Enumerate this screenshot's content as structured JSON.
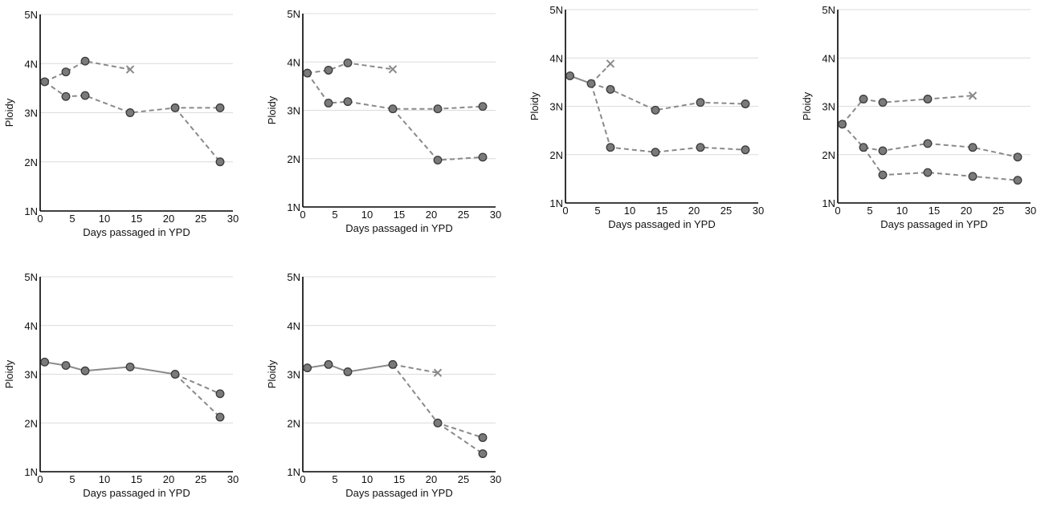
{
  "colors": {
    "marker_fill": "#7a7a7a",
    "marker_stroke": "#3a3a3a",
    "line": "#8a8a8a",
    "cross": "#8a8a8a",
    "grid": "#dcdcdc",
    "axis": "#000000"
  },
  "chart_data": [
    {
      "type": "line",
      "xlabel": "Days passaged in YPD",
      "ylabel": "Ploidy",
      "xlim": [
        0,
        30
      ],
      "ylim": [
        1,
        5
      ],
      "xticks": [
        "0",
        "5",
        "10",
        "15",
        "20",
        "25",
        "30"
      ],
      "yticks": [
        "1N",
        "2N",
        "3N",
        "4N",
        "5N"
      ],
      "grid": "horizontal",
      "series": [
        {
          "style": "dashed",
          "points": [
            [
              0.7,
              3.63
            ],
            [
              4,
              3.33
            ],
            [
              7,
              3.35
            ],
            [
              14,
              3.0
            ],
            [
              21,
              3.1
            ],
            [
              28,
              3.1
            ]
          ],
          "end": "circle"
        },
        {
          "style": "dashed",
          "points": [
            [
              0.7,
              3.63
            ],
            [
              4,
              3.83
            ],
            [
              7,
              4.05
            ],
            [
              14,
              3.88
            ]
          ],
          "end": "cross"
        },
        {
          "style": "dashed",
          "points": [
            [
              21,
              3.1
            ],
            [
              28,
              2.0
            ]
          ],
          "end": "circle"
        }
      ]
    },
    {
      "type": "line",
      "xlabel": "Days passaged in YPD",
      "ylabel": "Ploidy",
      "xlim": [
        0,
        30
      ],
      "ylim": [
        1,
        5
      ],
      "xticks": [
        "0",
        "5",
        "10",
        "15",
        "20",
        "25",
        "30"
      ],
      "yticks": [
        "1N",
        "2N",
        "3N",
        "4N",
        "5N"
      ],
      "grid": "horizontal",
      "series": [
        {
          "style": "dashed",
          "points": [
            [
              0.7,
              3.77
            ],
            [
              4,
              3.15
            ],
            [
              7,
              3.18
            ],
            [
              14,
              3.03
            ],
            [
              21,
              3.03
            ],
            [
              28,
              3.08
            ]
          ],
          "end": "circle"
        },
        {
          "style": "dashed",
          "points": [
            [
              0.7,
              3.77
            ],
            [
              4,
              3.83
            ],
            [
              7,
              3.98
            ],
            [
              14,
              3.85
            ]
          ],
          "end": "cross"
        },
        {
          "style": "dashed",
          "points": [
            [
              14,
              3.03
            ],
            [
              21,
              1.97
            ],
            [
              28,
              2.03
            ]
          ],
          "end": "circle"
        }
      ]
    },
    {
      "type": "line",
      "xlabel": "Days passaged in YPD",
      "ylabel": "Ploidy",
      "xlim": [
        0,
        30
      ],
      "ylim": [
        1,
        5
      ],
      "xticks": [
        "0",
        "5",
        "10",
        "15",
        "20",
        "25",
        "30"
      ],
      "yticks": [
        "1N",
        "2N",
        "3N",
        "4N",
        "5N"
      ],
      "grid": "horizontal",
      "series": [
        {
          "style": "solid",
          "points": [
            [
              0.7,
              3.63
            ],
            [
              4,
              3.47
            ]
          ],
          "end": "circle"
        },
        {
          "style": "dashed",
          "points": [
            [
              4,
              3.47
            ],
            [
              7,
              3.35
            ],
            [
              14,
              2.92
            ],
            [
              21,
              3.08
            ],
            [
              28,
              3.05
            ]
          ],
          "end": "circle"
        },
        {
          "style": "dashed",
          "points": [
            [
              4,
              3.47
            ],
            [
              7,
              3.88
            ]
          ],
          "end": "cross"
        },
        {
          "style": "dashed",
          "points": [
            [
              4,
              3.47
            ],
            [
              7,
              2.15
            ],
            [
              14,
              2.05
            ],
            [
              21,
              2.15
            ],
            [
              28,
              2.1
            ]
          ],
          "end": "circle"
        }
      ]
    },
    {
      "type": "line",
      "xlabel": "Days passaged in YPD",
      "ylabel": "Ploidy",
      "xlim": [
        0,
        30
      ],
      "ylim": [
        1,
        5
      ],
      "xticks": [
        "0",
        "5",
        "10",
        "15",
        "20",
        "25",
        "30"
      ],
      "yticks": [
        "1N",
        "2N",
        "3N",
        "4N",
        "5N"
      ],
      "grid": "horizontal",
      "series": [
        {
          "style": "dashed",
          "points": [
            [
              0.7,
              2.63
            ],
            [
              4,
              3.15
            ],
            [
              7,
              3.08
            ],
            [
              14,
              3.15
            ],
            [
              21,
              3.22
            ]
          ],
          "end": "cross"
        },
        {
          "style": "dashed",
          "points": [
            [
              0.7,
              2.63
            ],
            [
              4,
              2.15
            ],
            [
              7,
              2.08
            ],
            [
              14,
              2.23
            ],
            [
              21,
              2.15
            ],
            [
              28,
              1.95
            ]
          ],
          "end": "circle"
        },
        {
          "style": "dashed",
          "points": [
            [
              4,
              2.15
            ],
            [
              7,
              1.58
            ],
            [
              14,
              1.63
            ],
            [
              21,
              1.55
            ],
            [
              28,
              1.47
            ]
          ],
          "end": "circle"
        }
      ]
    },
    {
      "type": "line",
      "xlabel": "Days passaged in YPD",
      "ylabel": "Ploidy",
      "xlim": [
        0,
        30
      ],
      "ylim": [
        1,
        5
      ],
      "xticks": [
        "0",
        "5",
        "10",
        "15",
        "20",
        "25",
        "30"
      ],
      "yticks": [
        "1N",
        "2N",
        "3N",
        "4N",
        "5N"
      ],
      "grid": "horizontal",
      "series": [
        {
          "style": "solid",
          "points": [
            [
              0.7,
              3.25
            ],
            [
              4,
              3.18
            ],
            [
              7,
              3.07
            ],
            [
              14,
              3.15
            ],
            [
              21,
              3.0
            ]
          ],
          "end": "circle"
        },
        {
          "style": "dashed",
          "points": [
            [
              21,
              3.0
            ],
            [
              28,
              2.6
            ]
          ],
          "end": "circle"
        },
        {
          "style": "dashed",
          "points": [
            [
              21,
              3.0
            ],
            [
              28,
              2.12
            ]
          ],
          "end": "circle"
        }
      ]
    },
    {
      "type": "line",
      "xlabel": "Days passaged in YPD",
      "ylabel": "Ploidy",
      "xlim": [
        0,
        30
      ],
      "ylim": [
        1,
        5
      ],
      "xticks": [
        "0",
        "5",
        "10",
        "15",
        "20",
        "25",
        "30"
      ],
      "yticks": [
        "1N",
        "2N",
        "3N",
        "4N",
        "5N"
      ],
      "grid": "horizontal",
      "series": [
        {
          "style": "solid",
          "points": [
            [
              0.7,
              3.13
            ],
            [
              4,
              3.2
            ],
            [
              7,
              3.05
            ],
            [
              14,
              3.2
            ]
          ],
          "end": "circle"
        },
        {
          "style": "dashed",
          "points": [
            [
              14,
              3.2
            ],
            [
              21,
              3.03
            ]
          ],
          "end": "cross"
        },
        {
          "style": "dashed",
          "points": [
            [
              14,
              3.2
            ],
            [
              21,
              2.0
            ],
            [
              28,
              1.7
            ]
          ],
          "end": "circle"
        },
        {
          "style": "dashed",
          "points": [
            [
              21,
              2.0
            ],
            [
              28,
              1.37
            ]
          ],
          "end": "circle"
        }
      ]
    }
  ]
}
